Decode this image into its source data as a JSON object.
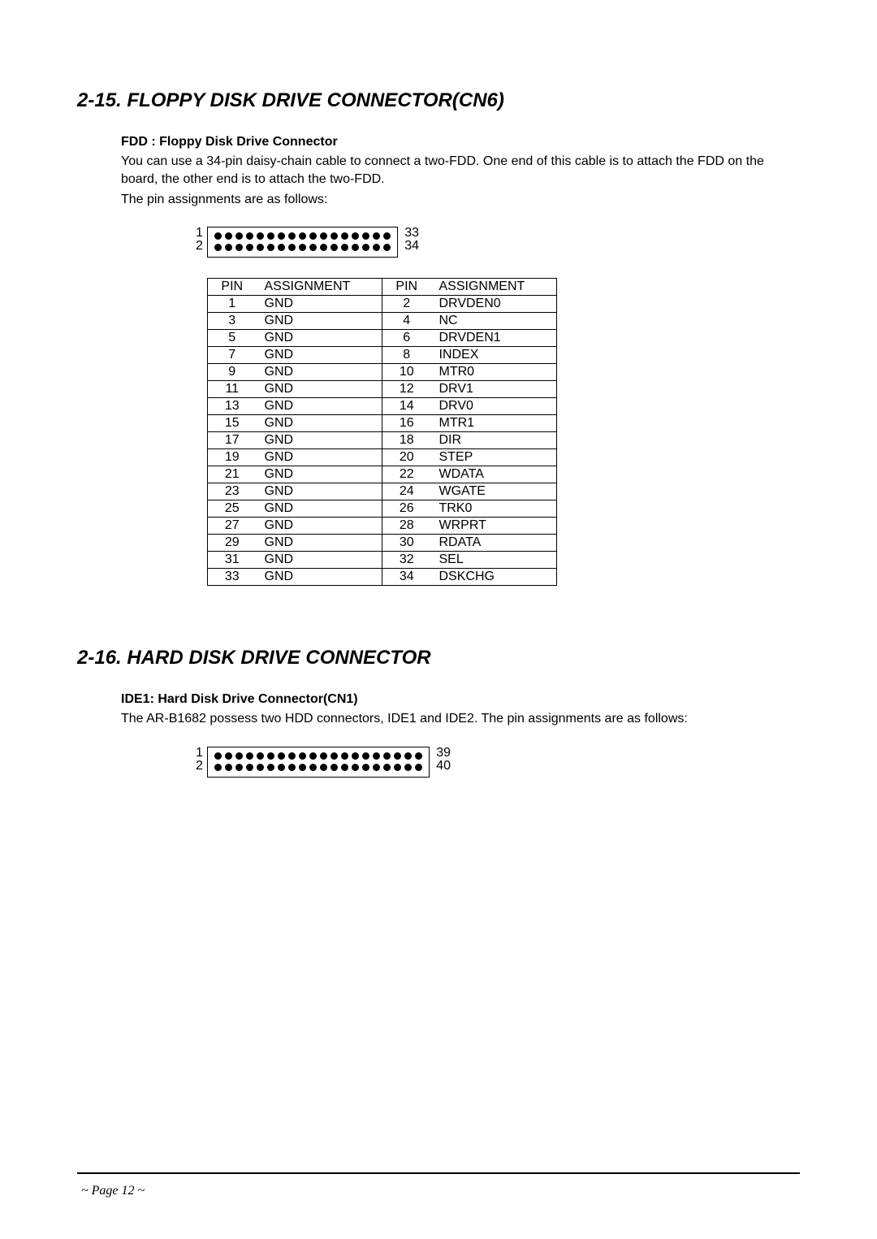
{
  "section1": {
    "heading": "2-15. FLOPPY DISK DRIVE CONNECTOR(CN6)",
    "sub": "FDD : Floppy Disk Drive Connector",
    "para1": "You can use a 34-pin daisy-chain cable to connect a two-FDD. One end of this cable is to attach the FDD on the board, the other end is to attach the two-FDD.",
    "para2": "The pin assignments are as follows:",
    "connector": {
      "pins_per_row": 17,
      "label_left_top": "1",
      "label_left_bot": "2",
      "label_right_top": "33",
      "label_right_bot": "34"
    },
    "table": {
      "headers": [
        "PIN",
        "ASSIGNMENT",
        "PIN",
        "ASSIGNMENT"
      ],
      "rows": [
        [
          "1",
          "GND",
          "2",
          "DRVDEN0"
        ],
        [
          "3",
          "GND",
          "4",
          "NC"
        ],
        [
          "5",
          "GND",
          "6",
          "DRVDEN1"
        ],
        [
          "7",
          "GND",
          "8",
          "INDEX"
        ],
        [
          "9",
          "GND",
          "10",
          "MTR0"
        ],
        [
          "11",
          "GND",
          "12",
          "DRV1"
        ],
        [
          "13",
          "GND",
          "14",
          "DRV0"
        ],
        [
          "15",
          "GND",
          "16",
          "MTR1"
        ],
        [
          "17",
          "GND",
          "18",
          "DIR"
        ],
        [
          "19",
          "GND",
          "20",
          "STEP"
        ],
        [
          "21",
          "GND",
          "22",
          "WDATA"
        ],
        [
          "23",
          "GND",
          "24",
          "WGATE"
        ],
        [
          "25",
          "GND",
          "26",
          "TRK0"
        ],
        [
          "27",
          "GND",
          "28",
          "WRPRT"
        ],
        [
          "29",
          "GND",
          "30",
          "RDATA"
        ],
        [
          "31",
          "GND",
          "32",
          "SEL"
        ],
        [
          "33",
          "GND",
          "34",
          "DSKCHG"
        ]
      ]
    }
  },
  "section2": {
    "heading": "2-16. HARD DISK DRIVE CONNECTOR",
    "sub": "IDE1: Hard Disk Drive Connector(CN1)",
    "para1": "The AR-B1682 possess two HDD connectors, IDE1 and IDE2. The pin assignments are as follows:",
    "connector": {
      "pins_per_row": 20,
      "label_left_top": "1",
      "label_left_bot": "2",
      "label_right_top": "39",
      "label_right_bot": "40"
    }
  },
  "footer": "~ Page 12 ~"
}
